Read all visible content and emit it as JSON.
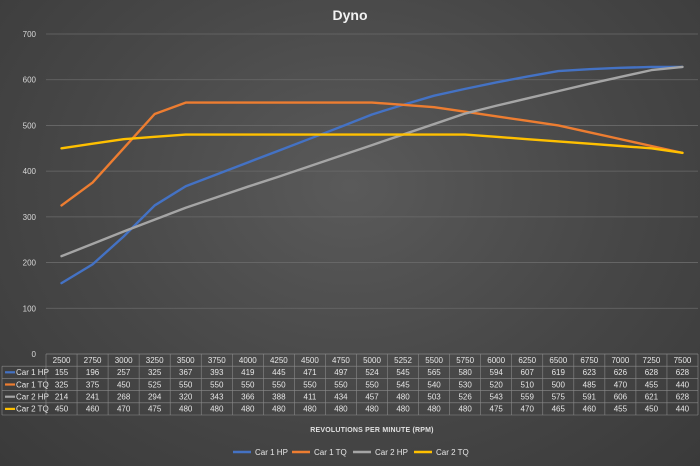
{
  "chart_data": {
    "type": "line",
    "title": "Dyno",
    "xlabel": "REVOLUTIONS PER MINUTE (RPM)",
    "ylabel": "",
    "ylim": [
      0,
      700
    ],
    "yticks": [
      0,
      100,
      200,
      300,
      400,
      500,
      600,
      700
    ],
    "grid": true,
    "legend": "bottom",
    "categories": [
      "2500",
      "2750",
      "3000",
      "3250",
      "3500",
      "3750",
      "4000",
      "4250",
      "4500",
      "4750",
      "5000",
      "5252",
      "5500",
      "5750",
      "6000",
      "6250",
      "6500",
      "6750",
      "7000",
      "7250",
      "7500"
    ],
    "series": [
      {
        "name": "Car 1 HP",
        "color": "#4472C4",
        "values": [
          155,
          196,
          257,
          325,
          367,
          393,
          419,
          445,
          471,
          497,
          524,
          545,
          565,
          580,
          594,
          607,
          619,
          623,
          626,
          628,
          628
        ]
      },
      {
        "name": "Car 1 TQ",
        "color": "#ED7D31",
        "values": [
          325,
          375,
          450,
          525,
          550,
          550,
          550,
          550,
          550,
          550,
          550,
          545,
          540,
          530,
          520,
          510,
          500,
          485,
          470,
          455,
          440
        ]
      },
      {
        "name": "Car 2 HP",
        "color": "#A5A5A5",
        "values": [
          214,
          241,
          268,
          294,
          320,
          343,
          366,
          388,
          411,
          434,
          457,
          480,
          503,
          526,
          543,
          559,
          575,
          591,
          606,
          621,
          628
        ]
      },
      {
        "name": "Car 2 TQ",
        "color": "#FFC000",
        "values": [
          450,
          460,
          470,
          475,
          480,
          480,
          480,
          480,
          480,
          480,
          480,
          480,
          480,
          480,
          475,
          470,
          465,
          460,
          455,
          450,
          440
        ]
      }
    ]
  }
}
